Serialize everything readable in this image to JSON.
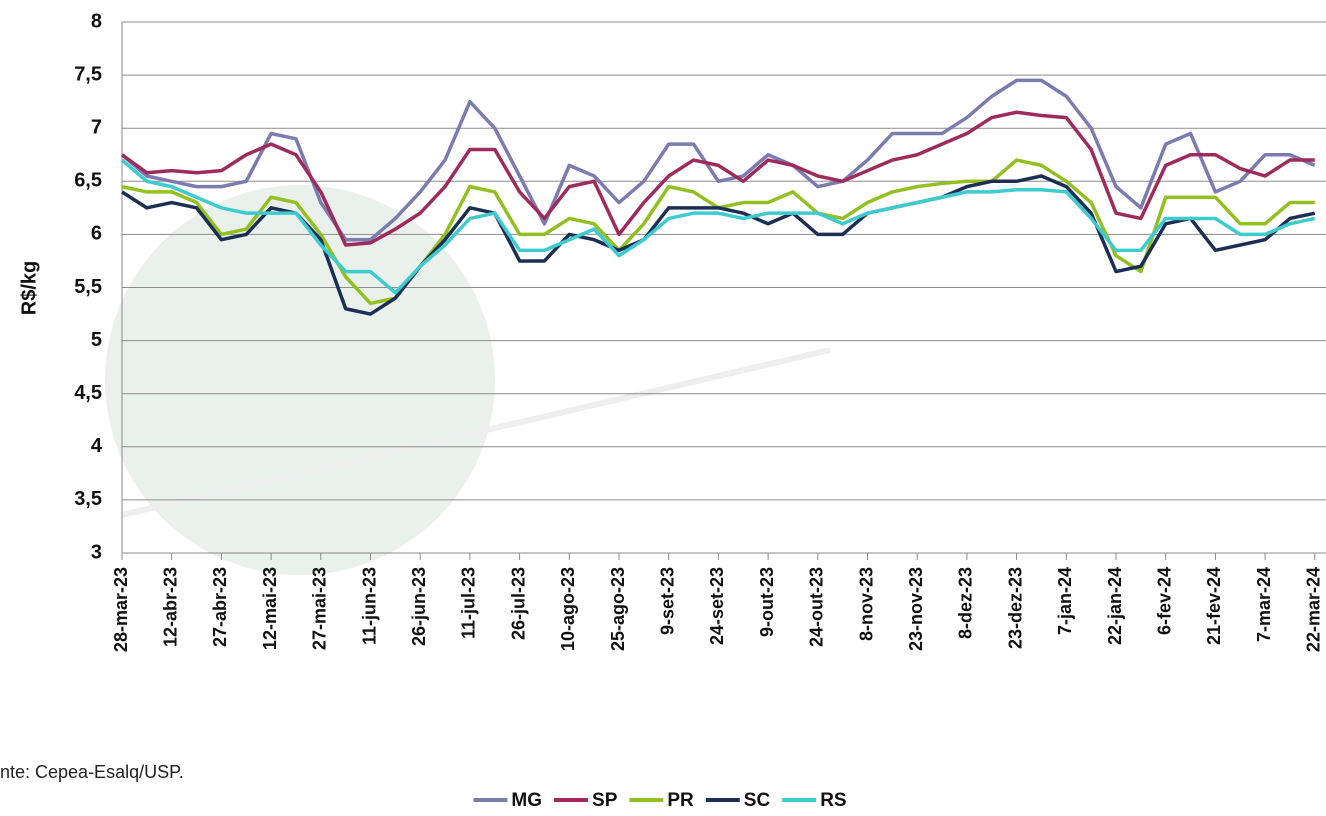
{
  "chart_data": {
    "type": "line",
    "y_label": "R$/kg",
    "source": "nte: Cepea-Esalq/USP.",
    "categories": [
      "28-mar-23",
      null,
      "12-abr-23",
      null,
      "27-abr-23",
      null,
      "12-mai-23",
      null,
      "27-mai-23",
      null,
      "11-jun-23",
      null,
      "26-jun-23",
      null,
      "11-jul-23",
      null,
      "26-jul-23",
      null,
      "10-ago-23",
      null,
      "25-ago-23",
      null,
      "9-set-23",
      null,
      "24-set-23",
      null,
      "9-out-23",
      null,
      "24-out-23",
      null,
      "8-nov-23",
      null,
      "23-nov-23",
      null,
      "8-dez-23",
      null,
      "23-dez-23",
      null,
      "7-jan-24",
      null,
      "22-jan-24",
      null,
      "6-fev-24",
      null,
      "21-fev-24",
      null,
      "7-mar-24",
      null,
      "22-mar-24"
    ],
    "series": [
      {
        "name": "MG",
        "color": "#7b7bb0",
        "values": [
          6.75,
          6.55,
          6.5,
          6.45,
          6.45,
          6.5,
          6.95,
          6.9,
          6.3,
          5.95,
          5.95,
          6.15,
          6.4,
          6.7,
          7.25,
          7.0,
          6.55,
          6.1,
          6.65,
          6.55,
          6.3,
          6.5,
          6.85,
          6.85,
          6.5,
          6.55,
          6.75,
          6.65,
          6.45,
          6.5,
          6.7,
          6.95,
          6.95,
          6.95,
          7.1,
          7.3,
          7.45,
          7.45,
          7.3,
          7.0,
          6.45,
          6.25,
          6.85,
          6.95,
          6.4,
          6.5,
          6.75,
          6.75,
          6.65
        ]
      },
      {
        "name": "SP",
        "color": "#9e2b5c",
        "values": [
          6.75,
          6.58,
          6.6,
          6.58,
          6.6,
          6.75,
          6.85,
          6.75,
          6.4,
          5.9,
          5.92,
          6.05,
          6.2,
          6.45,
          6.8,
          6.8,
          6.4,
          6.15,
          6.45,
          6.5,
          6.0,
          6.3,
          6.55,
          6.7,
          6.65,
          6.5,
          6.7,
          6.65,
          6.55,
          6.5,
          6.6,
          6.7,
          6.75,
          6.85,
          6.95,
          7.1,
          7.15,
          7.12,
          7.1,
          6.8,
          6.2,
          6.15,
          6.65,
          6.75,
          6.75,
          6.62,
          6.55,
          6.7,
          6.7
        ]
      },
      {
        "name": "PR",
        "color": "#92c020",
        "values": [
          6.45,
          6.4,
          6.4,
          6.3,
          6.0,
          6.05,
          6.35,
          6.3,
          6.0,
          5.6,
          5.35,
          5.4,
          5.7,
          6.0,
          6.45,
          6.4,
          6.0,
          6.0,
          6.15,
          6.1,
          5.85,
          6.1,
          6.45,
          6.4,
          6.25,
          6.3,
          6.3,
          6.4,
          6.2,
          6.15,
          6.3,
          6.4,
          6.45,
          6.48,
          6.5,
          6.5,
          6.7,
          6.65,
          6.5,
          6.3,
          5.8,
          5.65,
          6.35,
          6.35,
          6.35,
          6.1,
          6.1,
          6.3,
          6.3
        ]
      },
      {
        "name": "SC",
        "color": "#1b2f55",
        "values": [
          6.4,
          6.25,
          6.3,
          6.25,
          5.95,
          6.0,
          6.25,
          6.2,
          5.95,
          5.3,
          5.25,
          5.4,
          5.7,
          5.95,
          6.25,
          6.2,
          5.75,
          5.75,
          6.0,
          5.95,
          5.85,
          5.95,
          6.25,
          6.25,
          6.25,
          6.2,
          6.1,
          6.2,
          6.0,
          6.0,
          6.2,
          6.25,
          6.3,
          6.35,
          6.45,
          6.5,
          6.5,
          6.55,
          6.45,
          6.2,
          5.65,
          5.7,
          6.1,
          6.15,
          5.85,
          5.9,
          5.95,
          6.15,
          6.2
        ]
      },
      {
        "name": "RS",
        "color": "#3ecbd0",
        "values": [
          6.7,
          6.5,
          6.45,
          6.35,
          6.25,
          6.2,
          6.2,
          6.2,
          5.9,
          5.65,
          5.65,
          5.45,
          5.7,
          5.9,
          6.15,
          6.2,
          5.85,
          5.85,
          5.95,
          6.05,
          5.8,
          5.95,
          6.15,
          6.2,
          6.2,
          6.15,
          6.2,
          6.2,
          6.2,
          6.1,
          6.2,
          6.25,
          6.3,
          6.35,
          6.4,
          6.4,
          6.42,
          6.42,
          6.4,
          6.15,
          5.85,
          5.85,
          6.15,
          6.15,
          6.15,
          6.0,
          6.0,
          6.1,
          6.15
        ]
      }
    ],
    "ylim": [
      3,
      8
    ],
    "yticks": [
      3,
      {
        "value": 3.5,
        "label": "3,5"
      },
      4,
      {
        "value": 4.5,
        "label": "4,5"
      },
      5,
      {
        "value": 5.5,
        "label": "5,5"
      },
      6,
      {
        "value": 6.5,
        "label": "6,5"
      },
      7,
      {
        "value": 7.5,
        "label": "7,5"
      },
      8
    ],
    "grid": true,
    "legend": "bottom"
  }
}
